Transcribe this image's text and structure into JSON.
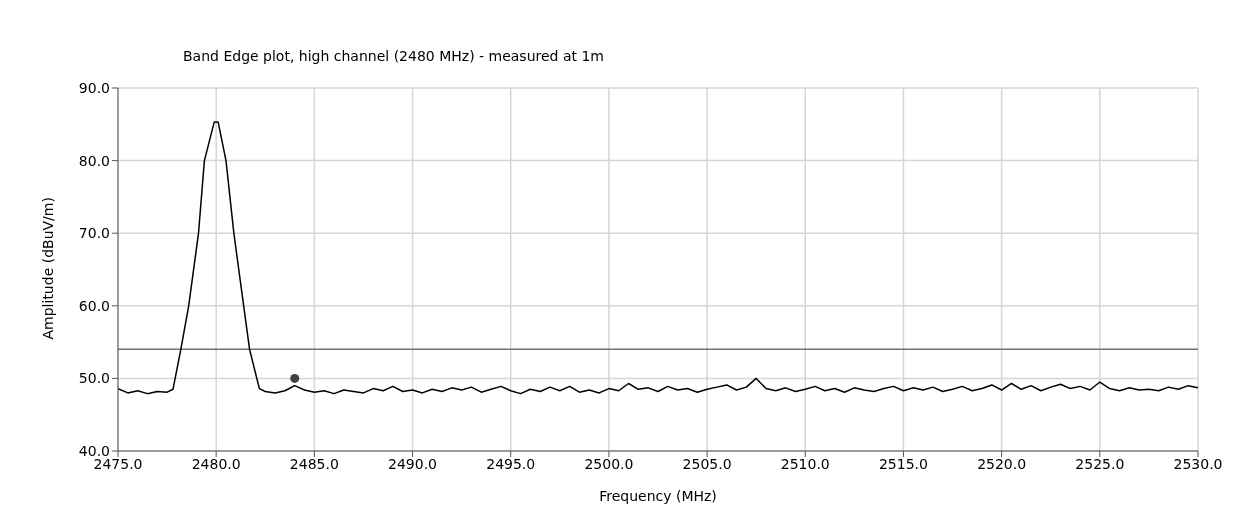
{
  "chart_data": {
    "type": "line",
    "title": "Band Edge plot, high channel (2480 MHz) - measured at 1m",
    "xlabel": "Frequency (MHz)",
    "ylabel": "Amplitude (dBuV/m)",
    "xlim": [
      2475,
      2530
    ],
    "ylim": [
      40,
      90
    ],
    "xticks": [
      {
        "value": 2475,
        "label": "2475.0"
      },
      {
        "value": 2480,
        "label": "2480.0"
      },
      {
        "value": 2485,
        "label": "2485.0"
      },
      {
        "value": 2490,
        "label": "2490.0"
      },
      {
        "value": 2495,
        "label": "2495.0"
      },
      {
        "value": 2500,
        "label": "2500.0"
      },
      {
        "value": 2505,
        "label": "2505.0"
      },
      {
        "value": 2510,
        "label": "2510.0"
      },
      {
        "value": 2515,
        "label": "2515.0"
      },
      {
        "value": 2520,
        "label": "2520.0"
      },
      {
        "value": 2525,
        "label": "2525.0"
      },
      {
        "value": 2530,
        "label": "2530.0"
      }
    ],
    "yticks": [
      {
        "value": 40,
        "label": "40.0"
      },
      {
        "value": 50,
        "label": "50.0"
      },
      {
        "value": 60,
        "label": "60.0"
      },
      {
        "value": 70,
        "label": "70.0"
      },
      {
        "value": 80,
        "label": "80.0"
      },
      {
        "value": 90,
        "label": "90.0"
      }
    ],
    "grid": true,
    "line_style": "solid",
    "ref_lines": [
      {
        "axis": "y",
        "value": 54,
        "color": "#707070"
      }
    ],
    "series": [
      {
        "color": "#000000",
        "marker": "none",
        "x": [
          2475.0,
          2475.5,
          2476.0,
          2476.5,
          2477.0,
          2477.5,
          2477.8,
          2478.2,
          2478.6,
          2479.1,
          2479.4,
          2479.9,
          2480.1,
          2480.5,
          2480.9,
          2481.4,
          2481.7,
          2482.2,
          2482.5,
          2483.0,
          2483.5,
          2484.0,
          2484.5,
          2485.0,
          2485.5,
          2486.0,
          2486.5,
          2487.0,
          2487.5,
          2488.0,
          2488.5,
          2489.0,
          2489.5,
          2490.0,
          2490.5,
          2491.0,
          2491.5,
          2492.0,
          2492.5,
          2493.0,
          2493.5,
          2494.0,
          2494.5,
          2495.0,
          2495.5,
          2496.0,
          2496.5,
          2497.0,
          2497.5,
          2498.0,
          2498.5,
          2499.0,
          2499.5,
          2500.0,
          2500.5,
          2501.0,
          2501.5,
          2502.0,
          2502.5,
          2503.0,
          2503.5,
          2504.0,
          2504.5,
          2505.0,
          2505.5,
          2506.0,
          2506.5,
          2507.0,
          2507.5,
          2508.0,
          2508.5,
          2509.0,
          2509.5,
          2510.0,
          2510.5,
          2511.0,
          2511.5,
          2512.0,
          2512.5,
          2513.0,
          2513.5,
          2514.0,
          2514.5,
          2515.0,
          2515.5,
          2516.0,
          2516.5,
          2517.0,
          2517.5,
          2518.0,
          2518.5,
          2519.0,
          2519.5,
          2520.0,
          2520.5,
          2521.0,
          2521.5,
          2522.0,
          2522.5,
          2523.0,
          2523.5,
          2524.0,
          2524.5,
          2525.0,
          2525.5,
          2526.0,
          2526.5,
          2527.0,
          2527.5,
          2528.0,
          2528.5,
          2529.0,
          2529.5,
          2530.0
        ],
        "values": [
          48.6,
          48.0,
          48.3,
          47.9,
          48.2,
          48.1,
          48.5,
          54,
          60,
          70,
          80,
          85.3,
          85.3,
          80,
          70,
          60,
          54,
          48.6,
          48.2,
          48.0,
          48.3,
          49.0,
          48.4,
          48.1,
          48.3,
          47.9,
          48.4,
          48.2,
          48.0,
          48.6,
          48.3,
          48.9,
          48.2,
          48.4,
          48.0,
          48.5,
          48.2,
          48.7,
          48.4,
          48.8,
          48.1,
          48.5,
          48.9,
          48.3,
          47.9,
          48.5,
          48.2,
          48.8,
          48.3,
          48.9,
          48.1,
          48.4,
          48.0,
          48.6,
          48.3,
          49.3,
          48.5,
          48.7,
          48.2,
          48.9,
          48.4,
          48.6,
          48.1,
          48.5,
          48.8,
          49.1,
          48.4,
          48.8,
          50.0,
          48.6,
          48.3,
          48.7,
          48.2,
          48.5,
          48.9,
          48.3,
          48.6,
          48.1,
          48.7,
          48.4,
          48.2,
          48.6,
          48.9,
          48.3,
          48.7,
          48.4,
          48.8,
          48.2,
          48.5,
          48.9,
          48.3,
          48.6,
          49.1,
          48.4,
          49.3,
          48.5,
          49.0,
          48.3,
          48.8,
          49.2,
          48.6,
          48.9,
          48.4,
          49.5,
          48.6,
          48.3,
          48.7,
          48.4,
          48.5,
          48.3,
          48.8,
          48.5,
          49.0,
          48.7
        ]
      },
      {
        "type": "scatter",
        "color": "#404040",
        "marker": "circle",
        "x": [
          2484.0
        ],
        "values": [
          50.0
        ]
      }
    ]
  }
}
